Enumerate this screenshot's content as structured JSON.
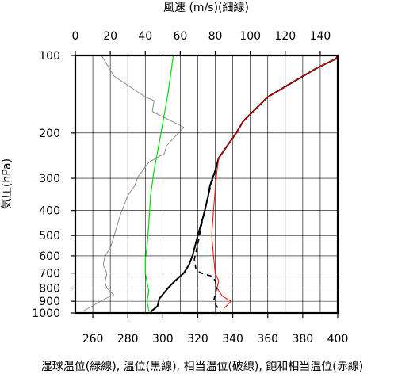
{
  "chart_data": {
    "type": "line",
    "top_axis": {
      "title": "風速 (m/s)(細線)",
      "ticks": [
        0,
        20,
        40,
        60,
        80,
        100,
        120,
        140
      ],
      "range": [
        0,
        150
      ]
    },
    "bottom_axis": {
      "title": "湿球温位(緑線), 温位(黒線), 相当温位(破線), 飽和相当温位(赤線)",
      "ticks": [
        260,
        280,
        300,
        320,
        340,
        360,
        380,
        400
      ],
      "range": [
        250,
        400
      ]
    },
    "y_axis": {
      "title": "気圧(hPa)",
      "ticks": [
        100,
        200,
        300,
        400,
        500,
        600,
        700,
        800,
        900,
        1000
      ],
      "range": [
        100,
        1000
      ],
      "scale": "log",
      "inverted": true
    },
    "grid": true,
    "series": [
      {
        "key": "wind_speed",
        "axis": "top",
        "color": "#808080",
        "dash": "none",
        "width": 0.9,
        "points": [
          [
            15,
            100
          ],
          [
            22,
            120
          ],
          [
            40,
            145
          ],
          [
            45,
            150
          ],
          [
            44,
            165
          ],
          [
            62,
            190
          ],
          [
            52,
            225
          ],
          [
            51,
            240
          ],
          [
            42,
            260
          ],
          [
            36,
            295
          ],
          [
            34,
            320
          ],
          [
            30,
            350
          ],
          [
            28,
            380
          ],
          [
            26,
            410
          ],
          [
            23,
            480
          ],
          [
            20,
            560
          ],
          [
            17,
            600
          ],
          [
            16,
            650
          ],
          [
            18,
            700
          ],
          [
            17,
            760
          ],
          [
            18,
            800
          ],
          [
            22,
            850
          ],
          [
            17,
            880
          ],
          [
            5,
            980
          ]
        ]
      },
      {
        "key": "wet_bulb_potential_temperature",
        "axis": "bottom",
        "color": "#00dd00",
        "dash": "none",
        "width": 1.2,
        "points": [
          [
            306,
            100
          ],
          [
            303,
            140
          ],
          [
            299,
            200
          ],
          [
            295,
            280
          ],
          [
            293,
            350
          ],
          [
            292,
            450
          ],
          [
            291,
            550
          ],
          [
            290,
            620
          ],
          [
            290,
            700
          ],
          [
            291,
            760
          ],
          [
            292,
            820
          ],
          [
            291,
            900
          ],
          [
            292,
            980
          ]
        ]
      },
      {
        "key": "potential_temperature",
        "axis": "bottom",
        "color": "#000000",
        "dash": "none",
        "width": 2.0,
        "points": [
          [
            400,
            100
          ],
          [
            399,
            103
          ],
          [
            388,
            112
          ],
          [
            360,
            145
          ],
          [
            346,
            180
          ],
          [
            342,
            200
          ],
          [
            332,
            250
          ],
          [
            330,
            280
          ],
          [
            327,
            320
          ],
          [
            326,
            350
          ],
          [
            324,
            400
          ],
          [
            322,
            450
          ],
          [
            320,
            500
          ],
          [
            317,
            600
          ],
          [
            315,
            650
          ],
          [
            312,
            700
          ],
          [
            307,
            750
          ],
          [
            303,
            800
          ],
          [
            298,
            880
          ],
          [
            297,
            940
          ],
          [
            293,
            990
          ]
        ]
      },
      {
        "key": "equivalent_potential_temperature",
        "axis": "bottom",
        "color": "#000000",
        "dash": "6,5",
        "width": 1.6,
        "points": [
          [
            400,
            100
          ],
          [
            399,
            103
          ],
          [
            388,
            112
          ],
          [
            360,
            145
          ],
          [
            346,
            180
          ],
          [
            342,
            200
          ],
          [
            332,
            250
          ],
          [
            330,
            280
          ],
          [
            327,
            330
          ],
          [
            324,
            400
          ],
          [
            322,
            460
          ],
          [
            320,
            540
          ],
          [
            318,
            620
          ],
          [
            319,
            680
          ],
          [
            322,
            700
          ],
          [
            328,
            720
          ],
          [
            330,
            750
          ],
          [
            331,
            790
          ],
          [
            330,
            850
          ],
          [
            329,
            900
          ],
          [
            333,
            990
          ]
        ]
      },
      {
        "key": "saturated_equivalent_potential_temperature",
        "axis": "bottom",
        "color": "#ff0000",
        "dash": "none",
        "width": 1.0,
        "points": [
          [
            400,
            100
          ],
          [
            399,
            103
          ],
          [
            388,
            112
          ],
          [
            360,
            145
          ],
          [
            346,
            180
          ],
          [
            342,
            200
          ],
          [
            332,
            250
          ],
          [
            331,
            280
          ],
          [
            330,
            330
          ],
          [
            329,
            400
          ],
          [
            328,
            500
          ],
          [
            329,
            600
          ],
          [
            330,
            700
          ],
          [
            332,
            750
          ],
          [
            331,
            800
          ],
          [
            334,
            860
          ],
          [
            339,
            900
          ],
          [
            335,
            960
          ]
        ]
      }
    ]
  }
}
